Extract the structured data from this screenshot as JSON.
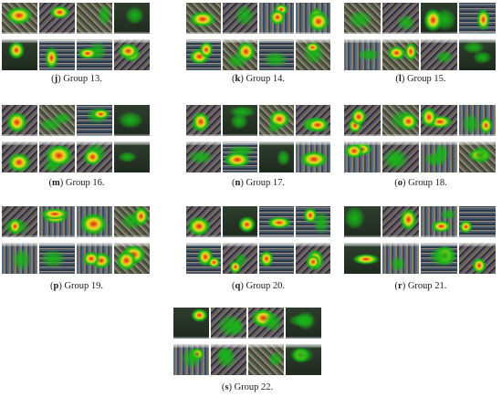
{
  "figures": [
    {
      "letter": "j",
      "label": "Group 13."
    },
    {
      "letter": "k",
      "label": "Group 14."
    },
    {
      "letter": "l",
      "label": "Group 15."
    },
    {
      "letter": "m",
      "label": "Group 16."
    },
    {
      "letter": "n",
      "label": "Group 17."
    },
    {
      "letter": "o",
      "label": "Group 18."
    },
    {
      "letter": "p",
      "label": "Group 19."
    },
    {
      "letter": "q",
      "label": "Group 20."
    },
    {
      "letter": "r",
      "label": "Group 21."
    },
    {
      "letter": "s",
      "label": "Group 22."
    }
  ],
  "colors": {
    "heat_low": "#18b418",
    "heat_mid": "#e8e020",
    "heat_high": "#e82010",
    "caption_text": "#1a1a1a"
  }
}
